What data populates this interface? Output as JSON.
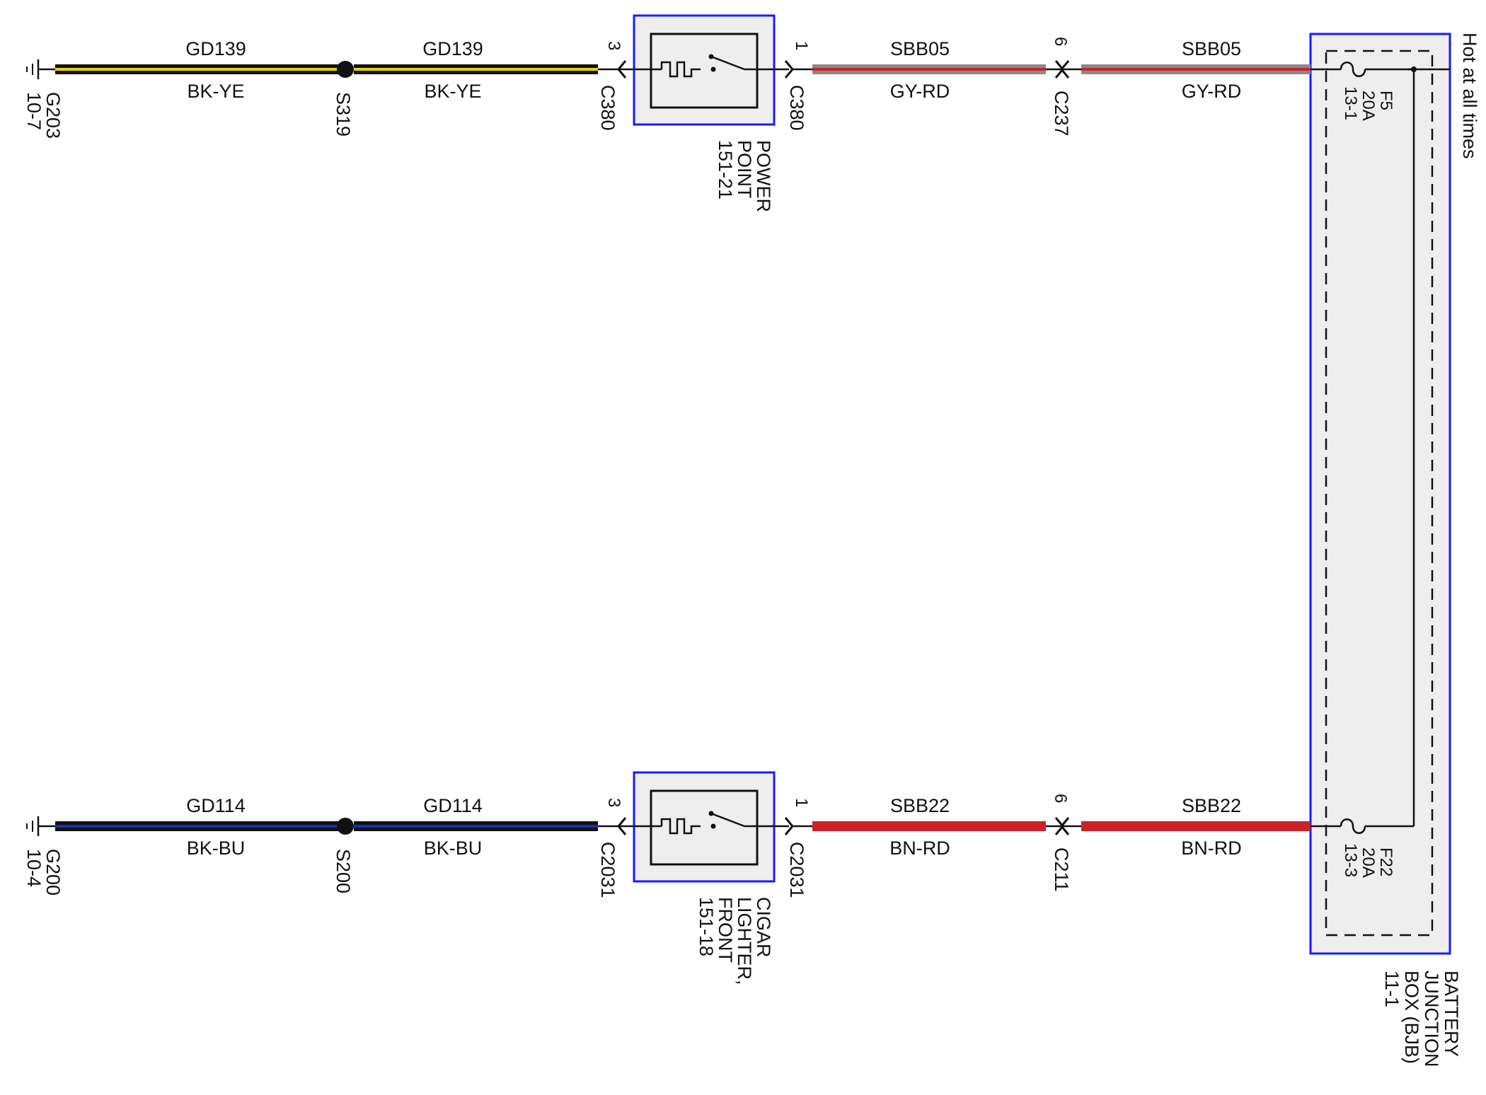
{
  "colors": {
    "box_outline": "#1a1aff",
    "box_fill": "#eeeeee",
    "black": "#111111",
    "yellow": "#e9d300",
    "blue": "#1a2dbb",
    "gray": "#8a8a8a",
    "red": "#c8232a"
  },
  "circuit1": {
    "ground_name": "G203",
    "ground_ref": "10-7",
    "wire1_name": "GD139",
    "wire1_color": "BK-YE",
    "splice": "S319",
    "wire2_name": "GD139",
    "wire2_color": "BK-YE",
    "pin_left": "3",
    "connector_left": "C380",
    "component_line1": "POWER",
    "component_line2": "POINT",
    "component_line3": "151-21",
    "pin_right": "1",
    "connector_right": "C380",
    "wire3_name": "SBB05",
    "wire3_color": "GY-RD",
    "inline_pin": "6",
    "inline_connector": "C237",
    "wire4_name": "SBB05",
    "wire4_color": "GY-RD",
    "fuse_name": "F5",
    "fuse_rating": "20A",
    "fuse_ref": "13-1"
  },
  "circuit2": {
    "ground_name": "G200",
    "ground_ref": "10-4",
    "wire1_name": "GD114",
    "wire1_color": "BK-BU",
    "splice": "S200",
    "wire2_name": "GD114",
    "wire2_color": "BK-BU",
    "pin_left": "3",
    "connector_left": "C2031",
    "component_line1": "CIGAR",
    "component_line2": "LIGHTER,",
    "component_line3": "FRONT",
    "component_line4": "151-18",
    "pin_right": "1",
    "connector_right": "C2031",
    "wire3_name": "SBB22",
    "wire3_color": "BN-RD",
    "inline_pin": "6",
    "inline_connector": "C211",
    "wire4_name": "SBB22",
    "wire4_color": "BN-RD",
    "fuse_name": "F22",
    "fuse_rating": "20A",
    "fuse_ref": "13-3"
  },
  "bjb": {
    "line1": "BATTERY",
    "line2": "JUNCTION",
    "line3": "BOX (BJB)",
    "line4": "11-1"
  },
  "power_source": "Hot at all times"
}
